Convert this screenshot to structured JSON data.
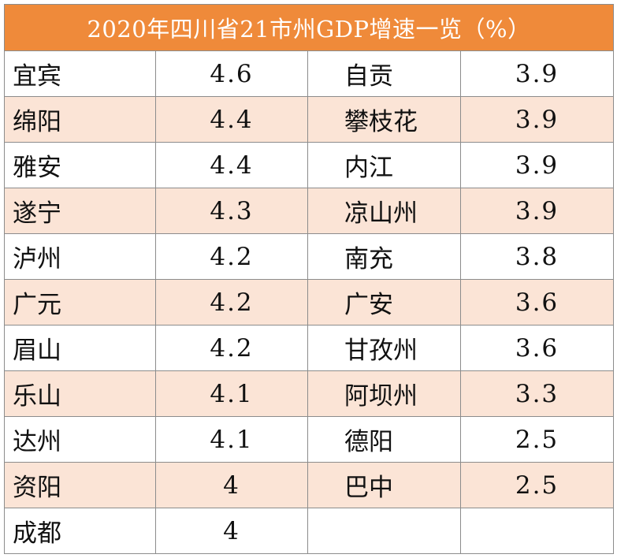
{
  "table": {
    "title": "2020年四川省21市州GDP增速一览（%）",
    "rows": [
      {
        "city_a": "宜宾",
        "val_a": "4.6",
        "city_b": "自贡",
        "val_b": "3.9"
      },
      {
        "city_a": "绵阳",
        "val_a": "4.4",
        "city_b": "攀枝花",
        "val_b": "3.9"
      },
      {
        "city_a": "雅安",
        "val_a": "4.4",
        "city_b": "内江",
        "val_b": "3.9"
      },
      {
        "city_a": "遂宁",
        "val_a": "4.3",
        "city_b": "凉山州",
        "val_b": "3.9"
      },
      {
        "city_a": "泸州",
        "val_a": "4.2",
        "city_b": "南充",
        "val_b": "3.8"
      },
      {
        "city_a": "广元",
        "val_a": "4.2",
        "city_b": "广安",
        "val_b": "3.6"
      },
      {
        "city_a": "眉山",
        "val_a": "4.2",
        "city_b": "甘孜州",
        "val_b": "3.6"
      },
      {
        "city_a": "乐山",
        "val_a": "4.1",
        "city_b": "阿坝州",
        "val_b": "3.3"
      },
      {
        "city_a": "达州",
        "val_a": "4.1",
        "city_b": "德阳",
        "val_b": "2.5"
      },
      {
        "city_a": "资阳",
        "val_a": "4",
        "city_b": "巴中",
        "val_b": "2.5"
      },
      {
        "city_a": "成都",
        "val_a": "4",
        "city_b": "",
        "val_b": ""
      }
    ],
    "colors": {
      "header_bg": "#ef8a3a",
      "alt_row_bg": "#fbe4d6",
      "border": "#8c8c8c"
    }
  }
}
